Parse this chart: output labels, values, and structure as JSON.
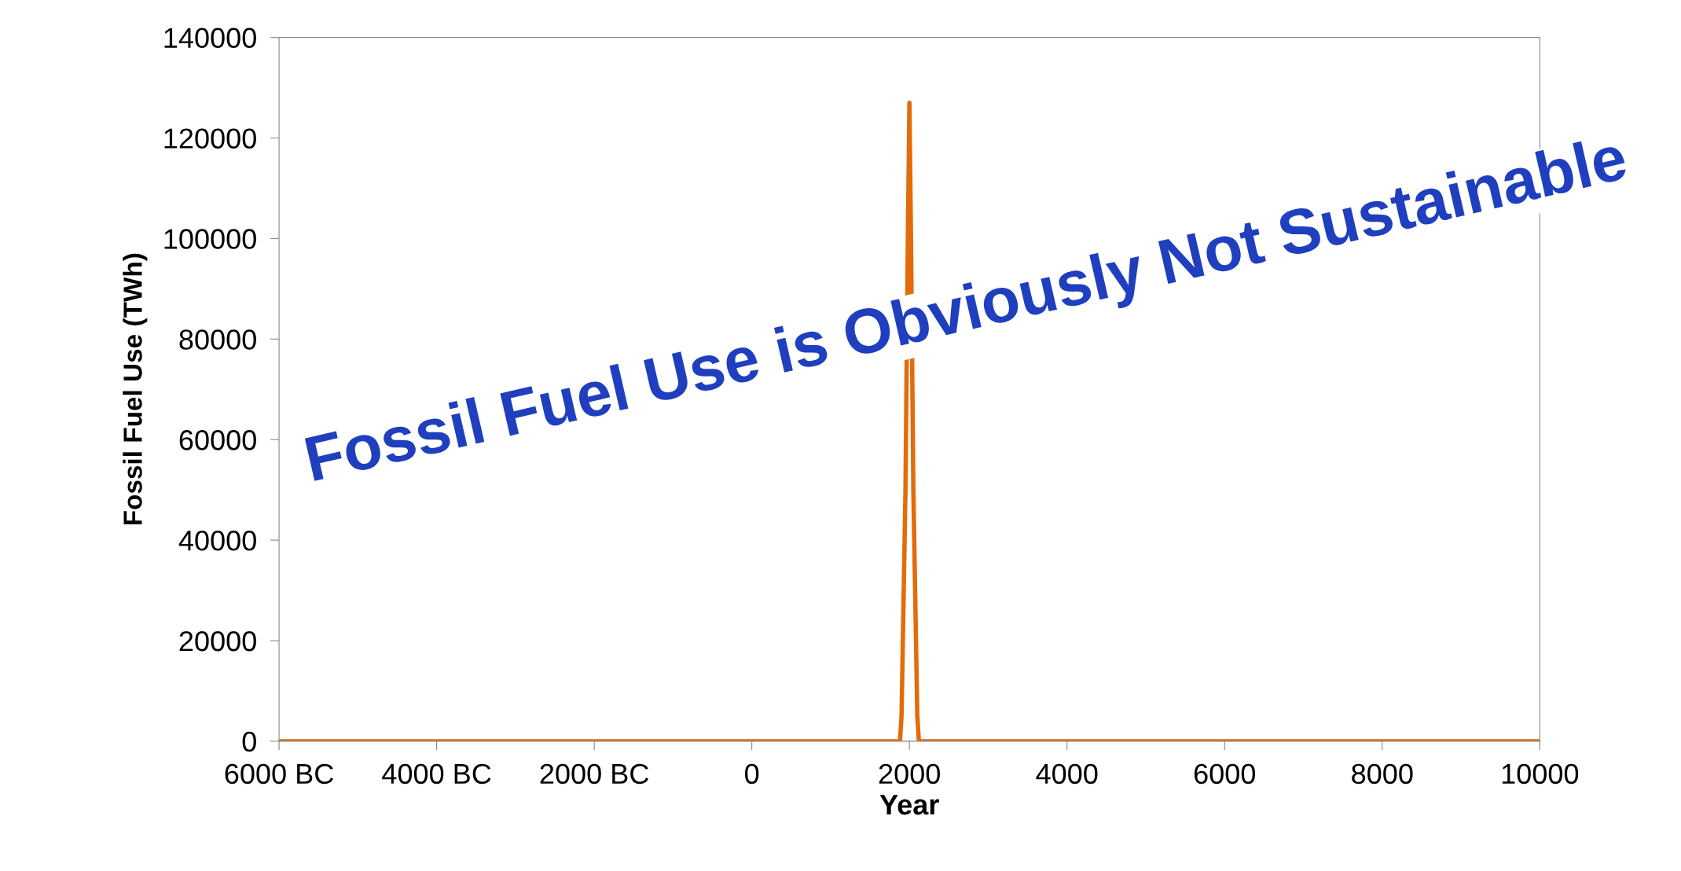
{
  "chart_data": {
    "type": "line",
    "xlabel": "Year",
    "ylabel": "Fossil Fuel Use (TWh)",
    "x": [
      -6000,
      1880,
      1900,
      1950,
      1980,
      2000,
      2020,
      2050,
      2100,
      2120,
      10000
    ],
    "series": [
      {
        "color": "#e36c0a",
        "values": [
          0,
          0,
          5000,
          50000,
          100000,
          127000,
          100000,
          50000,
          5000,
          0,
          0
        ]
      }
    ],
    "xlim": [
      -6000,
      10000
    ],
    "xticks": [
      {
        "value": -6000,
        "label": "6000 BC"
      },
      {
        "value": -4000,
        "label": "4000 BC"
      },
      {
        "value": -2000,
        "label": "2000 BC"
      },
      0,
      2000,
      4000,
      6000,
      8000,
      10000
    ],
    "ylim": [
      0,
      140000
    ],
    "yticks": [
      0,
      20000,
      40000,
      60000,
      80000,
      100000,
      120000,
      140000
    ],
    "grid": false,
    "legend": false,
    "marker": "none",
    "line_style": "solid",
    "annotations": [
      "Fossil Fuel Use is Obviously Not Sustainable"
    ]
  }
}
